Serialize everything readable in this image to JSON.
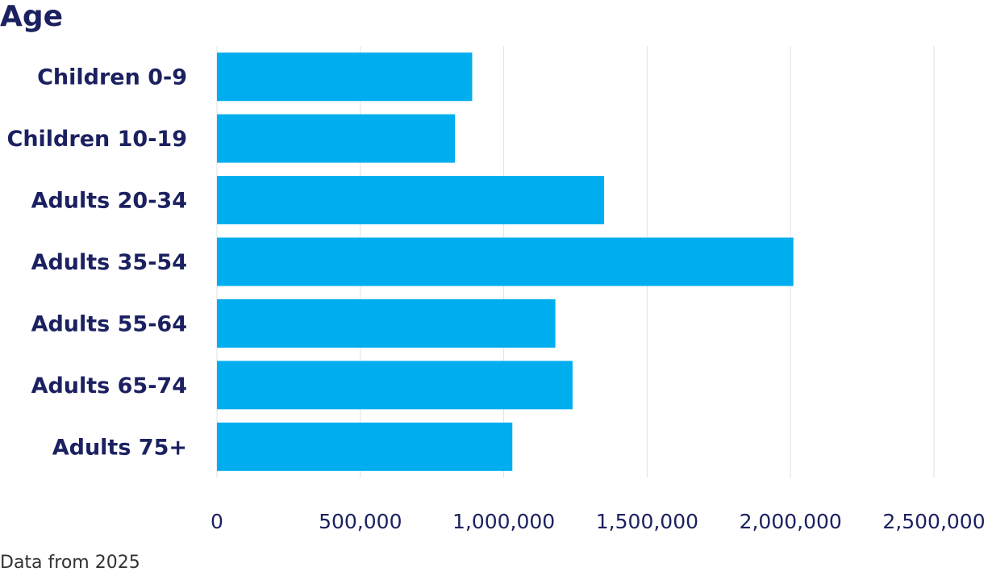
{
  "chart_data": {
    "type": "bar",
    "orientation": "horizontal",
    "title": "Age",
    "categories": [
      "Children 0-9",
      "Children 10-19",
      "Adults 20-34",
      "Adults 35-54",
      "Adults 55-64",
      "Adults 65-74",
      "Adults 75+"
    ],
    "values": [
      890000,
      830000,
      1350000,
      2010000,
      1180000,
      1240000,
      1030000
    ],
    "color": "#00adef",
    "xlim": [
      0,
      2500000
    ],
    "xticks": [
      0,
      {
        "value": 500000,
        "label": "500,000"
      },
      {
        "value": 1000000,
        "label": "1,000,000"
      },
      {
        "value": 1500000,
        "label": "1,500,000"
      },
      {
        "value": 2000000,
        "label": "2,000,000"
      },
      {
        "value": 2500000,
        "label": "2,500,000"
      }
    ],
    "grid": true,
    "source": "Data from 2025"
  }
}
